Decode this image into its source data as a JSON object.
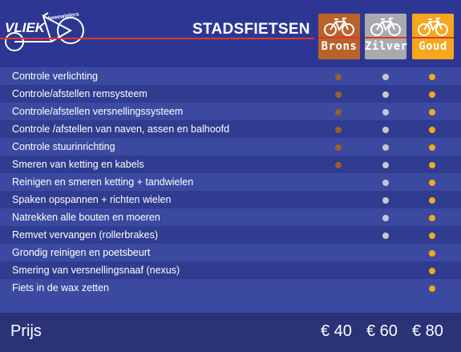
{
  "brand": {
    "name": "VLIEK",
    "tagline": "tweewielers"
  },
  "header": {
    "title": "STADSFIETSEN"
  },
  "packages": [
    {
      "label": "Brons",
      "color": "#b9622a"
    },
    {
      "label": "Zilver",
      "color": "#a9aaae"
    },
    {
      "label": "Goud",
      "color": "#f5a71d"
    }
  ],
  "services": [
    {
      "label": "Controle verlichting",
      "brons": true,
      "zilver": true,
      "goud": true
    },
    {
      "label": "Controle/afstellen remsysteem",
      "brons": true,
      "zilver": true,
      "goud": true
    },
    {
      "label": "Controle/afstellen versnellingssysteem",
      "brons": true,
      "zilver": true,
      "goud": true
    },
    {
      "label": "Controle /afstellen van naven, assen en balhoofd",
      "brons": true,
      "zilver": true,
      "goud": true
    },
    {
      "label": "Controle stuurinrichting",
      "brons": true,
      "zilver": true,
      "goud": true
    },
    {
      "label": "Smeren van ketting en kabels",
      "brons": true,
      "zilver": true,
      "goud": true
    },
    {
      "label": "Reinigen en smeren ketting + tandwielen",
      "brons": false,
      "zilver": true,
      "goud": true
    },
    {
      "label": "Spaken opspannen + richten wielen",
      "brons": false,
      "zilver": true,
      "goud": true
    },
    {
      "label": "Natrekken alle bouten en moeren",
      "brons": false,
      "zilver": true,
      "goud": true
    },
    {
      "label": "Remvet vervangen (rollerbrakes)",
      "brons": false,
      "zilver": true,
      "goud": true
    },
    {
      "label": "Grondig reinigen en poetsbeurt",
      "brons": false,
      "zilver": false,
      "goud": true
    },
    {
      "label": "Smering van versnellingsnaaf (nexus)",
      "brons": false,
      "zilver": false,
      "goud": true
    },
    {
      "label": "Fiets in de wax zetten",
      "brons": false,
      "zilver": false,
      "goud": true
    }
  ],
  "footer": {
    "label": "Prijs",
    "prices": [
      "€ 40",
      "€ 60",
      "€ 80"
    ]
  },
  "colors": {
    "background": "#2d3793",
    "accent_red": "#e2342b",
    "dot_brons": "#9c5f25",
    "dot_zilver": "#c8c8cc",
    "dot_goud": "#f5a71d"
  },
  "icons": [
    "bicycle-icon",
    "bullet-dot-icon"
  ]
}
